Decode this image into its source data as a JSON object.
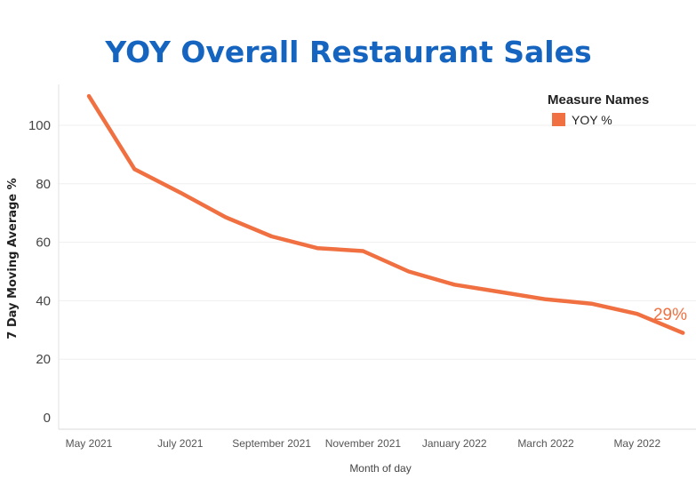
{
  "chart_data": {
    "type": "line",
    "title": "YOY Overall Restaurant Sales",
    "xlabel": "Month of day",
    "ylabel": "7 Day Moving Average %",
    "x_tick_labels": [
      "May 2021",
      "July 2021",
      "September 2021",
      "November 2021",
      "January 2022",
      "March 2022",
      "May 2022"
    ],
    "y_ticks": [
      0,
      20,
      40,
      60,
      80,
      100
    ],
    "ylim": [
      -5,
      115
    ],
    "grid": true,
    "legend_position": "top-right",
    "legend_title": "Measure Names",
    "series": [
      {
        "name": "YOY %",
        "color": "#f07041",
        "x": [
          "2021-05",
          "2021-06",
          "2021-07",
          "2021-08",
          "2021-09",
          "2021-10",
          "2021-11",
          "2021-12",
          "2022-01",
          "2022-02",
          "2022-03",
          "2022-04",
          "2022-05",
          "2022-06"
        ],
        "values": [
          110,
          85,
          77,
          68.5,
          62,
          58,
          57,
          50,
          45.5,
          43,
          40.5,
          39,
          35.5,
          29
        ]
      }
    ],
    "annotations": [
      {
        "text": "29%",
        "x": "2022-06",
        "y": 29
      }
    ]
  }
}
